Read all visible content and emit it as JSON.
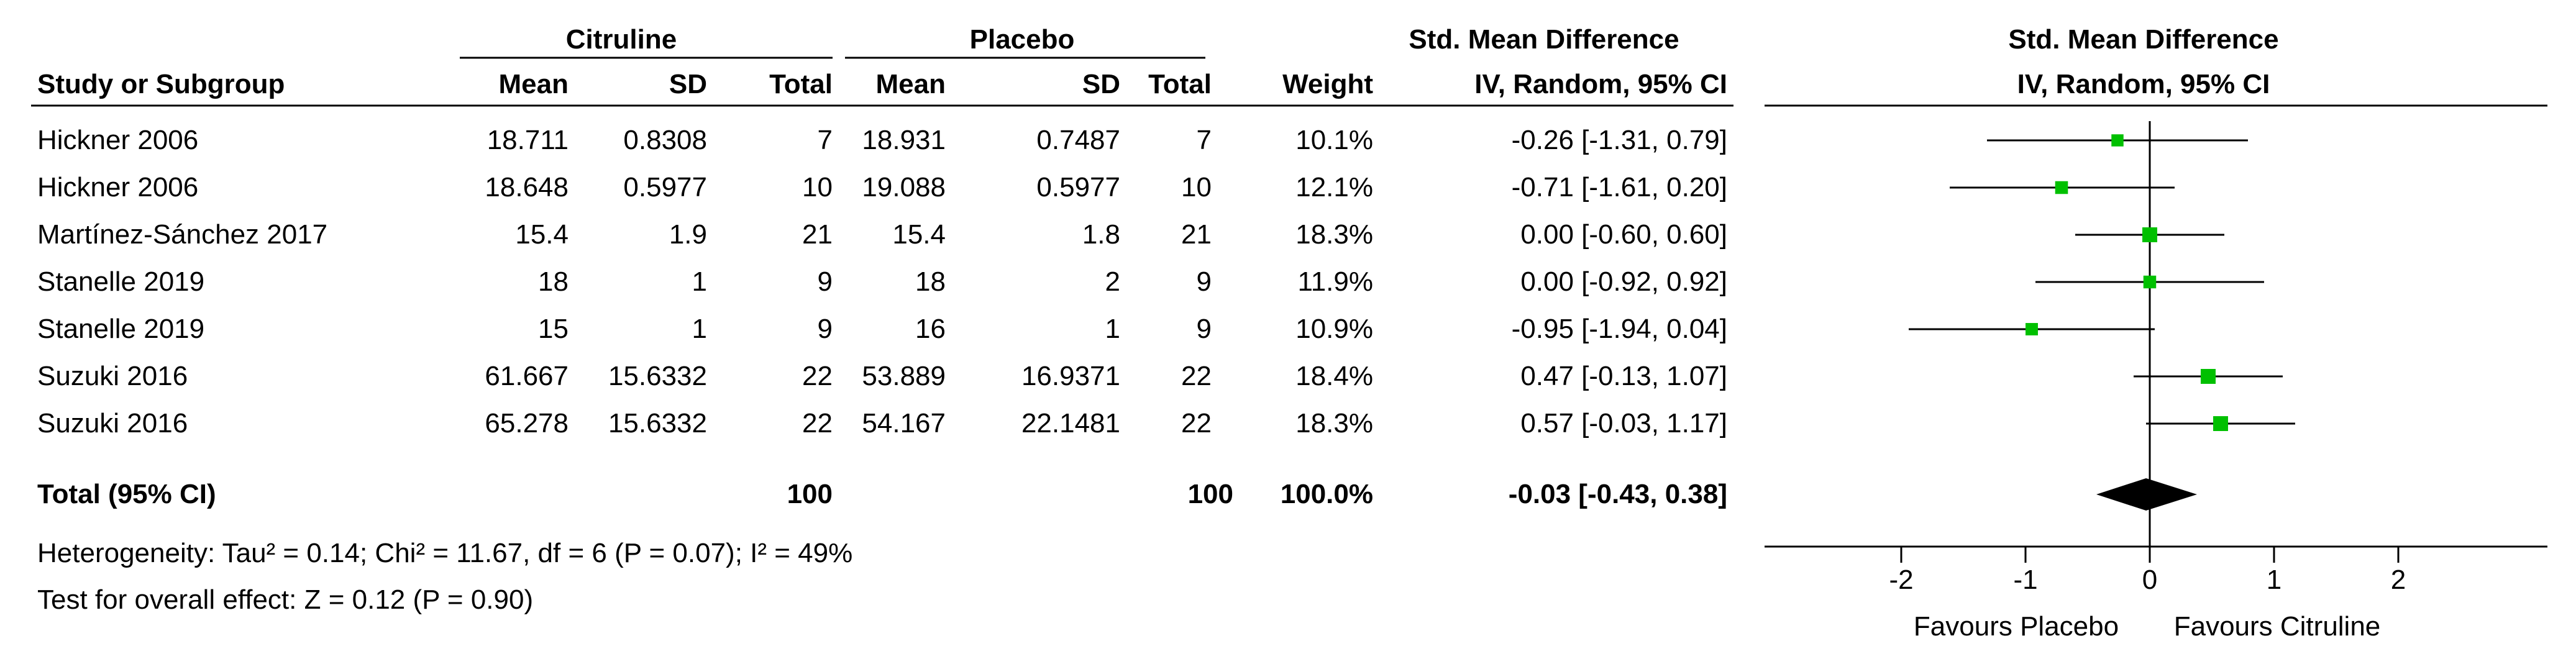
{
  "header": {
    "group1": "Citruline",
    "group2": "Placebo",
    "effect": "Std. Mean Difference",
    "plot_title": "Std. Mean Difference",
    "plot_method": "IV, Random, 95% CI",
    "col_study": "Study or Subgroup",
    "col_mean1": "Mean",
    "col_sd1": "SD",
    "col_total1": "Total",
    "col_mean2": "Mean",
    "col_sd2": "SD",
    "col_total2": "Total",
    "col_weight": "Weight",
    "col_ci": "IV, Random, 95% CI"
  },
  "rows": [
    {
      "study": "Hickner 2006",
      "mean1": "18.711",
      "sd1": "0.8308",
      "total1": "7",
      "mean2": "18.931",
      "sd2": "0.7487",
      "total2": "7",
      "weight": "10.1%",
      "ci": "-0.26 [-1.31, 0.79]"
    },
    {
      "study": "Hickner 2006",
      "mean1": "18.648",
      "sd1": "0.5977",
      "total1": "10",
      "mean2": "19.088",
      "sd2": "0.5977",
      "total2": "10",
      "weight": "12.1%",
      "ci": "-0.71 [-1.61, 0.20]"
    },
    {
      "study": "Martínez-Sánchez 2017",
      "mean1": "15.4",
      "sd1": "1.9",
      "total1": "21",
      "mean2": "15.4",
      "sd2": "1.8",
      "total2": "21",
      "weight": "18.3%",
      "ci": "0.00 [-0.60, 0.60]"
    },
    {
      "study": "Stanelle 2019",
      "mean1": "18",
      "sd1": "1",
      "total1": "9",
      "mean2": "18",
      "sd2": "2",
      "total2": "9",
      "weight": "11.9%",
      "ci": "0.00 [-0.92, 0.92]"
    },
    {
      "study": "Stanelle 2019",
      "mean1": "15",
      "sd1": "1",
      "total1": "9",
      "mean2": "16",
      "sd2": "1",
      "total2": "9",
      "weight": "10.9%",
      "ci": "-0.95 [-1.94, 0.04]"
    },
    {
      "study": "Suzuki 2016",
      "mean1": "61.667",
      "sd1": "15.6332",
      "total1": "22",
      "mean2": "53.889",
      "sd2": "16.9371",
      "total2": "22",
      "weight": "18.4%",
      "ci": "0.47 [-0.13, 1.07]"
    },
    {
      "study": "Suzuki 2016",
      "mean1": "65.278",
      "sd1": "15.6332",
      "total1": "22",
      "mean2": "54.167",
      "sd2": "22.1481",
      "total2": "22",
      "weight": "18.3%",
      "ci": "0.57 [-0.03, 1.17]"
    }
  ],
  "total": {
    "label": "Total (95% CI)",
    "total1": "100",
    "total2": "100",
    "weight": "100.0%",
    "ci": "-0.03 [-0.43, 0.38]"
  },
  "footer": {
    "heterogeneity": "Heterogeneity: Tau² = 0.14; Chi² = 11.67, df = 6 (P = 0.07); I² = 49%",
    "overall": "Test for overall effect: Z = 0.12 (P = 0.90)"
  },
  "axis": {
    "favours_left": "Favours Placebo",
    "favours_right": "Favours Citruline"
  },
  "colors": {
    "marker": "#00c000",
    "diamond": "#000000"
  },
  "chart_data": {
    "type": "forest",
    "xlim": [
      -3,
      3
    ],
    "ticks": [
      -2,
      -1,
      0,
      1,
      2
    ],
    "tick_labels": [
      "-2",
      "-1",
      "0",
      "1",
      "2"
    ],
    "studies": [
      {
        "label": "Hickner 2006",
        "est": -0.26,
        "lo": -1.31,
        "hi": 0.79,
        "weight": 10.1
      },
      {
        "label": "Hickner 2006",
        "est": -0.71,
        "lo": -1.61,
        "hi": 0.2,
        "weight": 12.1
      },
      {
        "label": "Martínez-Sánchez 2017",
        "est": 0.0,
        "lo": -0.6,
        "hi": 0.6,
        "weight": 18.3
      },
      {
        "label": "Stanelle 2019",
        "est": 0.0,
        "lo": -0.92,
        "hi": 0.92,
        "weight": 11.9
      },
      {
        "label": "Stanelle 2019",
        "est": -0.95,
        "lo": -1.94,
        "hi": 0.04,
        "weight": 10.9
      },
      {
        "label": "Suzuki 2016",
        "est": 0.47,
        "lo": -0.13,
        "hi": 1.07,
        "weight": 18.4
      },
      {
        "label": "Suzuki 2016",
        "est": 0.57,
        "lo": -0.03,
        "hi": 1.17,
        "weight": 18.3
      }
    ],
    "pooled": {
      "est": -0.03,
      "lo": -0.43,
      "hi": 0.38
    }
  }
}
